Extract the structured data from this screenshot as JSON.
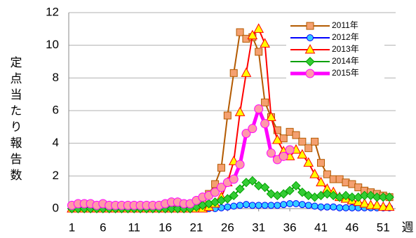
{
  "chart_data": {
    "type": "line",
    "y_label": "定点当たり報告数",
    "x_label": "週",
    "x": [
      1,
      2,
      3,
      4,
      5,
      6,
      7,
      8,
      9,
      10,
      11,
      12,
      13,
      14,
      15,
      16,
      17,
      18,
      19,
      20,
      21,
      22,
      23,
      24,
      25,
      26,
      27,
      28,
      29,
      30,
      31,
      32,
      33,
      34,
      35,
      36,
      37,
      38,
      39,
      40,
      41,
      42,
      43,
      44,
      45,
      46,
      47,
      48,
      49,
      50,
      51,
      52
    ],
    "xlim": [
      0.5,
      53
    ],
    "xticks": [
      1,
      6,
      11,
      16,
      21,
      26,
      31,
      36,
      41,
      46,
      51
    ],
    "ylim": [
      0,
      12
    ],
    "yticks": [
      0,
      2,
      4,
      6,
      8,
      10,
      12
    ],
    "grid": true,
    "legend": "upper right",
    "series": [
      {
        "name": "2011年",
        "color": "#b35a00",
        "marker": "square",
        "marker_fill": "#f4a070",
        "values": [
          0.1,
          0.1,
          0.1,
          0.1,
          0.1,
          0.1,
          0.1,
          0.1,
          0.1,
          0.1,
          0.1,
          0.1,
          0.1,
          0.1,
          0.1,
          0.1,
          0.1,
          0.1,
          0.1,
          0.2,
          0.3,
          0.5,
          0.9,
          1.5,
          2.5,
          5.7,
          8.3,
          10.8,
          10.4,
          10.5,
          9.6,
          6.5,
          5.6,
          4.8,
          4.3,
          4.7,
          4.5,
          4.1,
          3.7,
          4.1,
          2.8,
          2.1,
          1.8,
          1.8,
          1.6,
          1.5,
          1.3,
          1.1,
          1.0,
          0.9,
          0.8,
          0.7
        ]
      },
      {
        "name": "2012年",
        "color": "#0000ff",
        "marker": "circle",
        "marker_fill": "#33ccff",
        "values": [
          0,
          0,
          0,
          0,
          0,
          0,
          0,
          0,
          0,
          0,
          0,
          0,
          0,
          0,
          0,
          0,
          0,
          0,
          0,
          0,
          0,
          0,
          0,
          0,
          0.05,
          0.1,
          0.15,
          0.2,
          0.25,
          0.2,
          0.2,
          0.2,
          0.2,
          0.2,
          0.25,
          0.3,
          0.3,
          0.25,
          0.2,
          0.15,
          0.1,
          0.1,
          0.1,
          0.05,
          0.05,
          0.05,
          0.05,
          0.05,
          0.05,
          0.05,
          0.05,
          0.05
        ]
      },
      {
        "name": "2013年",
        "color": "#ff0000",
        "marker": "triangle",
        "marker_fill": "#ffff00",
        "values": [
          0,
          0,
          0,
          0,
          0,
          0,
          0,
          0,
          0,
          0,
          0,
          0,
          0,
          0,
          0,
          0,
          0,
          0,
          0,
          0,
          0,
          0,
          0.1,
          0.3,
          0.7,
          1.6,
          2.9,
          5.9,
          8.3,
          10.6,
          11.0,
          10.1,
          5.6,
          4.2,
          3.5,
          3.2,
          3.6,
          3.3,
          2.8,
          2.1,
          1.6,
          1.2,
          1.0,
          0.7,
          0.6,
          0.5,
          0.4,
          0.3,
          0.2,
          0.2,
          0.1,
          0.1
        ]
      },
      {
        "name": "2014年",
        "color": "#00a000",
        "marker": "diamond",
        "marker_fill": "#33cc33",
        "values": [
          0,
          0,
          0,
          0,
          0,
          0,
          0,
          0,
          0,
          0,
          0,
          0,
          0,
          0,
          0,
          0,
          0,
          0,
          0,
          0,
          0.1,
          0.2,
          0.3,
          0.4,
          0.5,
          0.6,
          0.8,
          1.2,
          1.6,
          1.7,
          1.4,
          1.3,
          0.9,
          0.8,
          0.9,
          1.1,
          1.4,
          1.0,
          0.8,
          0.7,
          0.8,
          0.9,
          0.8,
          0.7,
          0.8,
          0.7,
          0.7,
          0.8,
          0.8,
          0.7,
          0.7,
          0.7
        ]
      },
      {
        "name": "2015年",
        "color": "#ff00ff",
        "marker": "circle",
        "marker_fill": "#ff99aa",
        "line_width": 5,
        "values": [
          0.2,
          0.3,
          0.3,
          0.3,
          0.2,
          0.3,
          0.2,
          0.2,
          0.2,
          0.2,
          0.2,
          0.2,
          0.2,
          0.2,
          0.2,
          0.3,
          0.4,
          0.4,
          0.3,
          0.3,
          0.5,
          0.7,
          0.8,
          1.0,
          1.3,
          1.6,
          1.8,
          2.7,
          4.6,
          4.9,
          6.1,
          5.2,
          3.4,
          3.0,
          3.2,
          3.6,
          null,
          null,
          null,
          null,
          null,
          null,
          null,
          null,
          null,
          null,
          null,
          null,
          null,
          null,
          null,
          null
        ]
      }
    ]
  }
}
